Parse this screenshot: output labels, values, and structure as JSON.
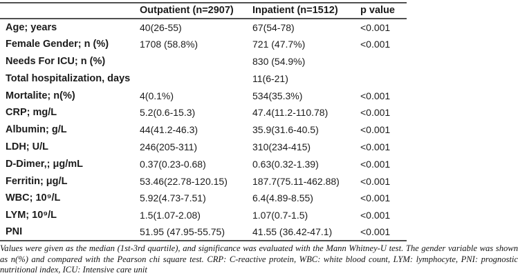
{
  "table": {
    "columns": [
      "",
      "Outpatient  (n=2907)",
      "Inpatient (n=1512)",
      "p value"
    ],
    "rows": [
      {
        "label": "Age; years",
        "outpatient": "40(26-55)",
        "inpatient": "67(54-78)",
        "p": "<0.001"
      },
      {
        "label": "Female Gender; n (%)",
        "outpatient": "1708 (58.8%)",
        "inpatient": "721 (47.7%)",
        "p": "<0.001"
      },
      {
        "label": "Needs For ICU; n (%)",
        "outpatient": "",
        "inpatient": "830 (54.9%)",
        "p": ""
      },
      {
        "label": "Total hospitalization, days",
        "outpatient": "",
        "inpatient": "11(6-21)",
        "p": ""
      },
      {
        "label": "Mortalite; n(%)",
        "outpatient": "4(0.1%)",
        "inpatient": "534(35.3%)",
        "p": "<0.001"
      },
      {
        "label": "CRP; mg/L",
        "outpatient": "5.2(0.6-15.3)",
        "inpatient": "47.4(11.2-110.78)",
        "p": "<0.001"
      },
      {
        "label": "Albumin; g/L",
        "outpatient": "44(41.2-46.3)",
        "inpatient": "35.9(31.6-40.5)",
        "p": "<0.001"
      },
      {
        "label": "LDH; U/L",
        "outpatient": "246(205-311)",
        "inpatient": "310(234-415)",
        "p": "<0.001"
      },
      {
        "label": "D-Dimer,; μg/mL",
        "outpatient": "0.37(0.23-0.68)",
        "inpatient": "0.63(0.32-1.39)",
        "p": "<0.001"
      },
      {
        "label": "Ferritin; μg/L",
        "outpatient": "53.46(22.78-120.15)",
        "inpatient": "187.7(75.11-462.88)",
        "p": "<0.001"
      },
      {
        "label": "WBC; 10⁹/L",
        "outpatient": "5.92(4.73-7.51)",
        "inpatient": "6.4(4.89-8.55)",
        "p": "<0.001"
      },
      {
        "label": "LYM; 10⁹/L",
        "outpatient": "1.5(1.07-2.08)",
        "inpatient": "1.07(0.7-1.5)",
        "p": "<0.001"
      },
      {
        "label": "PNI",
        "outpatient": "51.95 (47.95-55.75)",
        "inpatient": "41.55 (36.42-47.1)",
        "p": "<0.001"
      }
    ]
  },
  "footnote": "Values were given as the median (1st-3rd quartile), and significance was evaluated with the Mann Whitney-U test. The gender variable was shown as n(%) and compared with the Pearson chi square test. CRP: C-reactive protein, WBC: white blood count, LYM: lymphocyte, PNI: prognostic nutritional index, ICU: Intensive care unit",
  "colors": {
    "rule": "#4f4f4f",
    "text": "#1b1b1b"
  }
}
